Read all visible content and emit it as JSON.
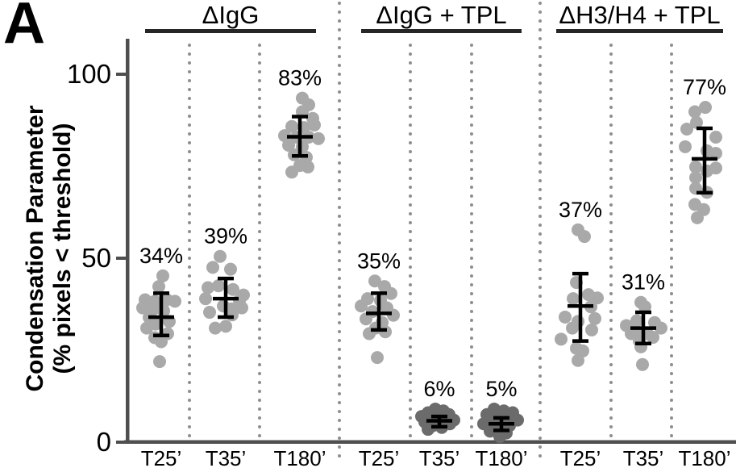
{
  "panel_label": "A",
  "colors": {
    "dot_light": "#a9a9a9",
    "dot_dark": "#6b6b6b",
    "axis": "#4f4f4f",
    "separator_dots": "#8f8f8f",
    "header_bar": "#262626",
    "error_bar": "#000000",
    "text": "#000000",
    "background": "#ffffff"
  },
  "chart_data": {
    "type": "scatter",
    "variant": "jittered dot plot with mean ± SD error bars",
    "title": "",
    "xlabel": "",
    "ylabel_line1": "Condensation Parameter",
    "ylabel_line2": "(% pixels < threshold)",
    "ylim": [
      0,
      109
    ],
    "yticks": [
      0,
      50,
      100
    ],
    "grid": false,
    "legend": "none",
    "points_format": "[condensation_percent_value, x_jitter_px]",
    "groups": [
      {
        "label": "ΔIgG",
        "conditions": [
          {
            "x_label": "T25’",
            "mean_label": "34%",
            "mean": 34,
            "err_hi": 40.5,
            "err_lo": 29,
            "shade": "light",
            "points": [
              [
                45.2,
                2
              ],
              [
                42.3,
                -3
              ],
              [
                38.7,
                -20
              ],
              [
                38.3,
                -8
              ],
              [
                38.7,
                7
              ],
              [
                38.3,
                17
              ],
              [
                36.5,
                -23
              ],
              [
                36.1,
                -10
              ],
              [
                35.7,
                3
              ],
              [
                33.9,
                -15
              ],
              [
                32.8,
                10
              ],
              [
                32.1,
                -7
              ],
              [
                31,
                -18
              ],
              [
                29.5,
                8
              ],
              [
                28.4,
                -8
              ],
              [
                27.3,
                0
              ],
              [
                21.9,
                -2
              ]
            ]
          },
          {
            "x_label": "T35’",
            "mean_label": "39%",
            "mean": 39,
            "err_hi": 44.5,
            "err_lo": 34,
            "shade": "light",
            "points": [
              [
                50.5,
                -7
              ],
              [
                47.5,
                -16
              ],
              [
                47,
                6
              ],
              [
                42.5,
                -9
              ],
              [
                42,
                -22
              ],
              [
                41.5,
                9
              ],
              [
                40,
                22
              ],
              [
                39,
                -25
              ],
              [
                38.5,
                17
              ],
              [
                37,
                -3
              ],
              [
                36.5,
                20
              ],
              [
                36.2,
                7
              ],
              [
                35.3,
                -20
              ],
              [
                34.6,
                8
              ],
              [
                31.5,
                0
              ],
              [
                31,
                -13
              ]
            ]
          },
          {
            "x_label": "T180’",
            "mean_label": "83%",
            "mean": 83,
            "err_hi": 88.5,
            "err_lo": 77.8,
            "shade": "light",
            "points": [
              [
                93.5,
                3
              ],
              [
                91.7,
                11
              ],
              [
                89.8,
                3
              ],
              [
                88,
                16
              ],
              [
                86.2,
                18
              ],
              [
                85.8,
                -10
              ],
              [
                85.5,
                5
              ],
              [
                83.3,
                -19
              ],
              [
                82.9,
                -4
              ],
              [
                82.9,
                11
              ],
              [
                82.5,
                23
              ],
              [
                80.7,
                -14
              ],
              [
                80.3,
                3
              ],
              [
                78.1,
                -7
              ],
              [
                77.4,
                8
              ],
              [
                75.2,
                0
              ],
              [
                74.8,
                10
              ],
              [
                73.4,
                -10
              ]
            ]
          }
        ]
      },
      {
        "label": "ΔIgG + TPL",
        "conditions": [
          {
            "x_label": "T25’",
            "mean_label": "35%",
            "mean": 35,
            "err_hi": 40.5,
            "err_lo": 30.5,
            "shade": "light",
            "points": [
              [
                43.8,
                -5
              ],
              [
                42.3,
                7
              ],
              [
                40.4,
                15
              ],
              [
                39,
                -14
              ],
              [
                38.5,
                2
              ],
              [
                37,
                -22
              ],
              [
                36.5,
                10
              ],
              [
                35.5,
                -8
              ],
              [
                34.5,
                18
              ],
              [
                33.5,
                -16
              ],
              [
                32.5,
                4
              ],
              [
                31,
                -4
              ],
              [
                30,
                8
              ],
              [
                29.5,
                -12
              ],
              [
                23,
                -2
              ]
            ]
          },
          {
            "x_label": "T35’",
            "mean_label": "6%",
            "mean": 5.8,
            "err_hi": 7,
            "err_lo": 4.2,
            "shade": "dark",
            "points": [
              [
                9,
                -5
              ],
              [
                8.5,
                5
              ],
              [
                8,
                -14
              ],
              [
                7.5,
                12
              ],
              [
                7,
                -22
              ],
              [
                6.5,
                0
              ],
              [
                6.2,
                -10
              ],
              [
                6,
                18
              ],
              [
                5.8,
                8
              ],
              [
                5.5,
                -18
              ],
              [
                5.2,
                -3
              ],
              [
                5,
                13
              ],
              [
                4.5,
                -8
              ],
              [
                4,
                3
              ],
              [
                3.5,
                -14
              ]
            ]
          },
          {
            "x_label": "T180’",
            "mean_label": "5%",
            "mean": 5,
            "err_hi": 6.6,
            "err_lo": 3.2,
            "shade": "dark",
            "points": [
              [
                9,
                -9
              ],
              [
                8.5,
                3
              ],
              [
                8,
                14
              ],
              [
                7.5,
                -18
              ],
              [
                7,
                -4
              ],
              [
                6.5,
                8
              ],
              [
                6,
                20
              ],
              [
                5.5,
                -12
              ],
              [
                5.2,
                0
              ],
              [
                5,
                -22
              ],
              [
                4.5,
                10
              ],
              [
                4,
                -6
              ],
              [
                3.5,
                4
              ],
              [
                3,
                -14
              ],
              [
                2.5,
                6
              ],
              [
                1.5,
                -2
              ]
            ]
          }
        ]
      },
      {
        "label": "ΔH3/H4 + TPL",
        "conditions": [
          {
            "x_label": "T25’",
            "mean_label": "37%",
            "mean": 37,
            "err_hi": 45.8,
            "err_lo": 27.5,
            "shade": "light",
            "points": [
              [
                57.7,
                -3
              ],
              [
                55.9,
                5
              ],
              [
                43.4,
                -5
              ],
              [
                40.1,
                10
              ],
              [
                39.2,
                21
              ],
              [
                39,
                -9
              ],
              [
                36.8,
                13
              ],
              [
                34,
                -19
              ],
              [
                33.6,
                18
              ],
              [
                32.8,
                -3
              ],
              [
                31,
                -10
              ],
              [
                30.5,
                14
              ],
              [
                28,
                -24
              ],
              [
                25.5,
                -5
              ],
              [
                24.8,
                3
              ],
              [
                22.2,
                -3
              ]
            ]
          },
          {
            "x_label": "T35’",
            "mean_label": "31%",
            "mean": 31,
            "err_hi": 35.3,
            "err_lo": 26.8,
            "shade": "light",
            "points": [
              [
                38,
                -3
              ],
              [
                36.8,
                2
              ],
              [
                33,
                -8
              ],
              [
                32.5,
                14
              ],
              [
                31.7,
                -21
              ],
              [
                31,
                22
              ],
              [
                30,
                -10
              ],
              [
                29.5,
                -15
              ],
              [
                29.5,
                5
              ],
              [
                28.5,
                12
              ],
              [
                27.5,
                -5
              ],
              [
                25.9,
                -3
              ],
              [
                21.1,
                -1
              ]
            ]
          },
          {
            "x_label": "T180’",
            "mean_label": "77%",
            "mean": 77,
            "err_hi": 85.3,
            "err_lo": 67.8,
            "shade": "light",
            "points": [
              [
                91,
                1
              ],
              [
                89.8,
                -12
              ],
              [
                86.9,
                -10
              ],
              [
                85.1,
                -22
              ],
              [
                82.9,
                14
              ],
              [
                80.3,
                -24
              ],
              [
                79.2,
                3
              ],
              [
                78.5,
                14
              ],
              [
                74.8,
                -11
              ],
              [
                74.5,
                14
              ],
              [
                73.7,
                3
              ],
              [
                71.9,
                -11
              ],
              [
                69,
                -11
              ],
              [
                67.9,
                3
              ],
              [
                64.6,
                -12
              ],
              [
                63.2,
                -1
              ],
              [
                61,
                -9
              ]
            ]
          }
        ]
      }
    ]
  }
}
